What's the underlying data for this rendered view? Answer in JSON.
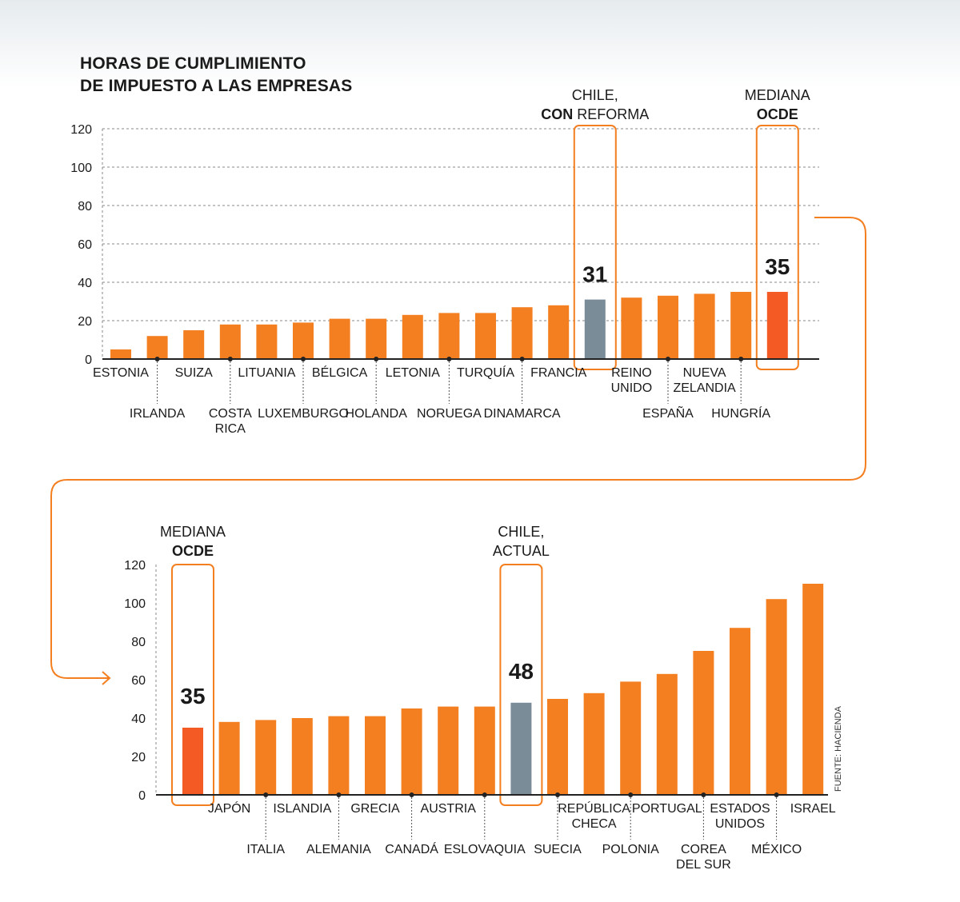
{
  "title_lines": [
    "HORAS DE CUMPLIMIENTO",
    "DE IMPUESTO A LAS EMPRESAS"
  ],
  "source": "FUENTE: HACIENDA",
  "colors": {
    "bar": "#f47f20",
    "median": "#f45a23",
    "chile": "#7a8c98",
    "highlight": "#f47f20",
    "grid": "#8a8a8a",
    "text": "#1a1a1a"
  },
  "chart_data": [
    {
      "type": "bar",
      "yticks": [
        0,
        20,
        40,
        60,
        80,
        100,
        120
      ],
      "ylim": [
        0,
        120
      ],
      "grid": true,
      "categories": [
        [
          "ESTONIA"
        ],
        [
          "IRLANDA"
        ],
        [
          "SUIZA"
        ],
        [
          "COSTA",
          "RICA"
        ],
        [
          "LITUANIA"
        ],
        [
          "LUXEMBURGO"
        ],
        [
          "BÉLGICA"
        ],
        [
          "HOLANDA"
        ],
        [
          "LETONIA"
        ],
        [
          "NORUEGA"
        ],
        [
          "TURQUÍA"
        ],
        [
          "DINAMARCA"
        ],
        [
          "FRANCIA"
        ],
        [],
        [
          "REINO",
          "UNIDO"
        ],
        [
          "ESPAÑA"
        ],
        [
          "NUEVA",
          "ZELANDIA"
        ],
        [
          "HUNGRÍA"
        ],
        []
      ],
      "values": [
        5,
        12,
        15,
        18,
        18,
        19,
        21,
        21,
        23,
        24,
        24,
        27,
        28,
        31,
        32,
        33,
        34,
        35,
        35
      ],
      "kinds": [
        "c",
        "c",
        "c",
        "c",
        "c",
        "c",
        "c",
        "c",
        "c",
        "c",
        "c",
        "c",
        "c",
        "chile",
        "c",
        "c",
        "c",
        "c",
        "median"
      ],
      "highlights": [
        {
          "index": 13,
          "label_lines": [
            [
              {
                "t": "CHILE,",
                "b": false
              }
            ],
            [
              {
                "t": "CON",
                "b": true
              },
              {
                "t": " REFORMA",
                "b": false
              }
            ]
          ],
          "value_label": "31"
        },
        {
          "index": 18,
          "label_lines": [
            [
              {
                "t": "MEDIANA",
                "b": false
              }
            ],
            [
              {
                "t": "OCDE",
                "b": true
              }
            ]
          ],
          "value_label": "35"
        }
      ]
    },
    {
      "type": "bar",
      "yticks": [
        0,
        20,
        40,
        60,
        80,
        100,
        120
      ],
      "ylim": [
        0,
        120
      ],
      "grid": false,
      "categories": [
        [],
        [
          "JAPÓN"
        ],
        [
          "ITALIA"
        ],
        [
          "ISLANDIA"
        ],
        [
          "ALEMANIA"
        ],
        [
          "GRECIA"
        ],
        [
          "CANADÁ"
        ],
        [
          "AUSTRIA"
        ],
        [
          "ESLOVAQUIA"
        ],
        [],
        [
          "SUECIA"
        ],
        [
          "REPÚBLICA",
          "CHECA"
        ],
        [
          "POLONIA"
        ],
        [
          "PORTUGAL"
        ],
        [
          "COREA",
          "DEL SUR"
        ],
        [
          "ESTADOS",
          "UNIDOS"
        ],
        [
          "MÉXICO"
        ],
        [
          "ISRAEL"
        ]
      ],
      "values": [
        35,
        38,
        39,
        40,
        41,
        41,
        45,
        46,
        46,
        48,
        50,
        53,
        59,
        63,
        75,
        87,
        102,
        110
      ],
      "kinds": [
        "median",
        "c",
        "c",
        "c",
        "c",
        "c",
        "c",
        "c",
        "c",
        "chile",
        "c",
        "c",
        "c",
        "c",
        "c",
        "c",
        "c",
        "c"
      ],
      "highlights": [
        {
          "index": 0,
          "label_lines": [
            [
              {
                "t": "MEDIANA",
                "b": false
              }
            ],
            [
              {
                "t": "OCDE",
                "b": true
              }
            ]
          ],
          "value_label": "35"
        },
        {
          "index": 9,
          "label_lines": [
            [
              {
                "t": "CHILE,",
                "b": false
              }
            ],
            [
              {
                "t": "ACTUAL",
                "b": false
              }
            ]
          ],
          "value_label": "48"
        }
      ]
    }
  ]
}
